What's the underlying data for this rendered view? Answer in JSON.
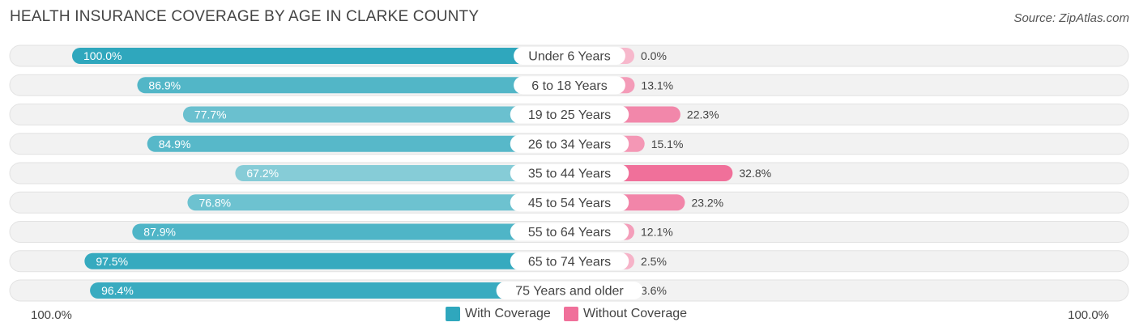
{
  "title": "HEALTH INSURANCE COVERAGE BY AGE IN CLARKE COUNTY",
  "source": "Source: ZipAtlas.com",
  "colors": {
    "with_coverage_dark": "#2fa7bd",
    "with_coverage_light": "#8ccfd9",
    "without_coverage_dark": "#f0709a",
    "without_coverage_light": "#f7b8cc",
    "row_bg": "#f1f1f1"
  },
  "legend": {
    "with_label": "With Coverage",
    "without_label": "Without Coverage"
  },
  "axis": {
    "left_label": "100.0%",
    "right_label": "100.0%"
  },
  "chart_data": {
    "type": "bar",
    "orientation": "horizontal-diverging",
    "title": "HEALTH INSURANCE COVERAGE BY AGE IN CLARKE COUNTY",
    "categories": [
      "Under 6 Years",
      "6 to 18 Years",
      "19 to 25 Years",
      "26 to 34 Years",
      "35 to 44 Years",
      "45 to 54 Years",
      "55 to 64 Years",
      "65 to 74 Years",
      "75 Years and older"
    ],
    "series": [
      {
        "name": "With Coverage",
        "values": [
          100.0,
          86.9,
          77.7,
          84.9,
          67.2,
          76.8,
          87.9,
          97.5,
          96.4
        ],
        "labels": [
          "100.0%",
          "86.9%",
          "77.7%",
          "84.9%",
          "67.2%",
          "76.8%",
          "87.9%",
          "97.5%",
          "96.4%"
        ]
      },
      {
        "name": "Without Coverage",
        "values": [
          0.0,
          13.1,
          22.3,
          15.1,
          32.8,
          23.2,
          12.1,
          2.5,
          3.6
        ],
        "labels": [
          "0.0%",
          "13.1%",
          "22.3%",
          "15.1%",
          "32.8%",
          "23.2%",
          "12.1%",
          "2.5%",
          "3.6%"
        ]
      }
    ],
    "xlim": [
      0,
      100
    ],
    "legend_position": "bottom-center"
  }
}
